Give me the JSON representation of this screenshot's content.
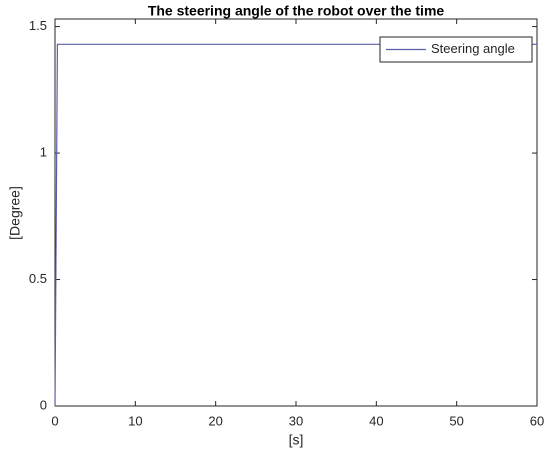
{
  "chart_data": {
    "type": "line",
    "title": "The steering angle of the robot over the time",
    "xlabel": "[s]",
    "ylabel": "[Degree]",
    "x": [
      0,
      0.3,
      60
    ],
    "series": [
      {
        "name": "Steering angle",
        "color": "#5b5ea6",
        "values": [
          0,
          1.43,
          1.43
        ]
      }
    ],
    "xlim": [
      0,
      60
    ],
    "xticks": [
      0,
      10,
      20,
      30,
      40,
      50,
      60
    ],
    "ylim": [
      0,
      1.53
    ],
    "yticks": [
      0,
      0.5,
      1,
      1.5
    ],
    "grid": false,
    "legend": "upper right"
  }
}
